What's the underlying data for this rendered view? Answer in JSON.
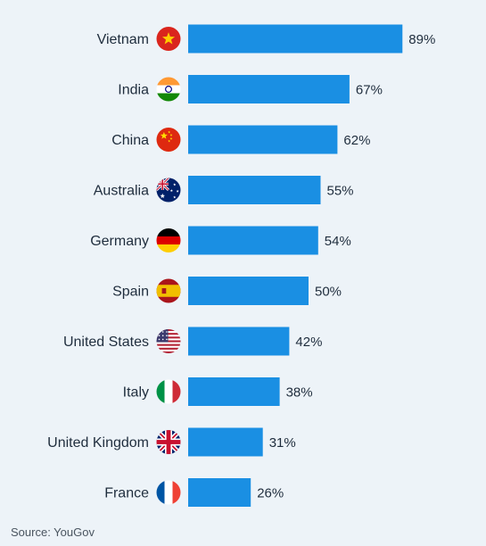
{
  "chart_data": {
    "type": "bar",
    "orientation": "horizontal",
    "categories": [
      "Vietnam",
      "India",
      "China",
      "Australia",
      "Germany",
      "Spain",
      "United States",
      "Italy",
      "United Kingdom",
      "France"
    ],
    "values": [
      89,
      67,
      62,
      55,
      54,
      50,
      42,
      38,
      31,
      26
    ],
    "value_labels": [
      "89%",
      "67%",
      "62%",
      "55%",
      "54%",
      "50%",
      "42%",
      "38%",
      "31%",
      "26%"
    ],
    "flag_icons": [
      "flag-vietnam-icon",
      "flag-india-icon",
      "flag-china-icon",
      "flag-australia-icon",
      "flag-germany-icon",
      "flag-spain-icon",
      "flag-united-states-icon",
      "flag-italy-icon",
      "flag-united-kingdom-icon",
      "flag-france-icon"
    ],
    "bar_color": "#1a8fe3",
    "xlim": [
      0,
      100
    ],
    "grid": false,
    "legend": "none"
  },
  "source": "Source: YouGov"
}
